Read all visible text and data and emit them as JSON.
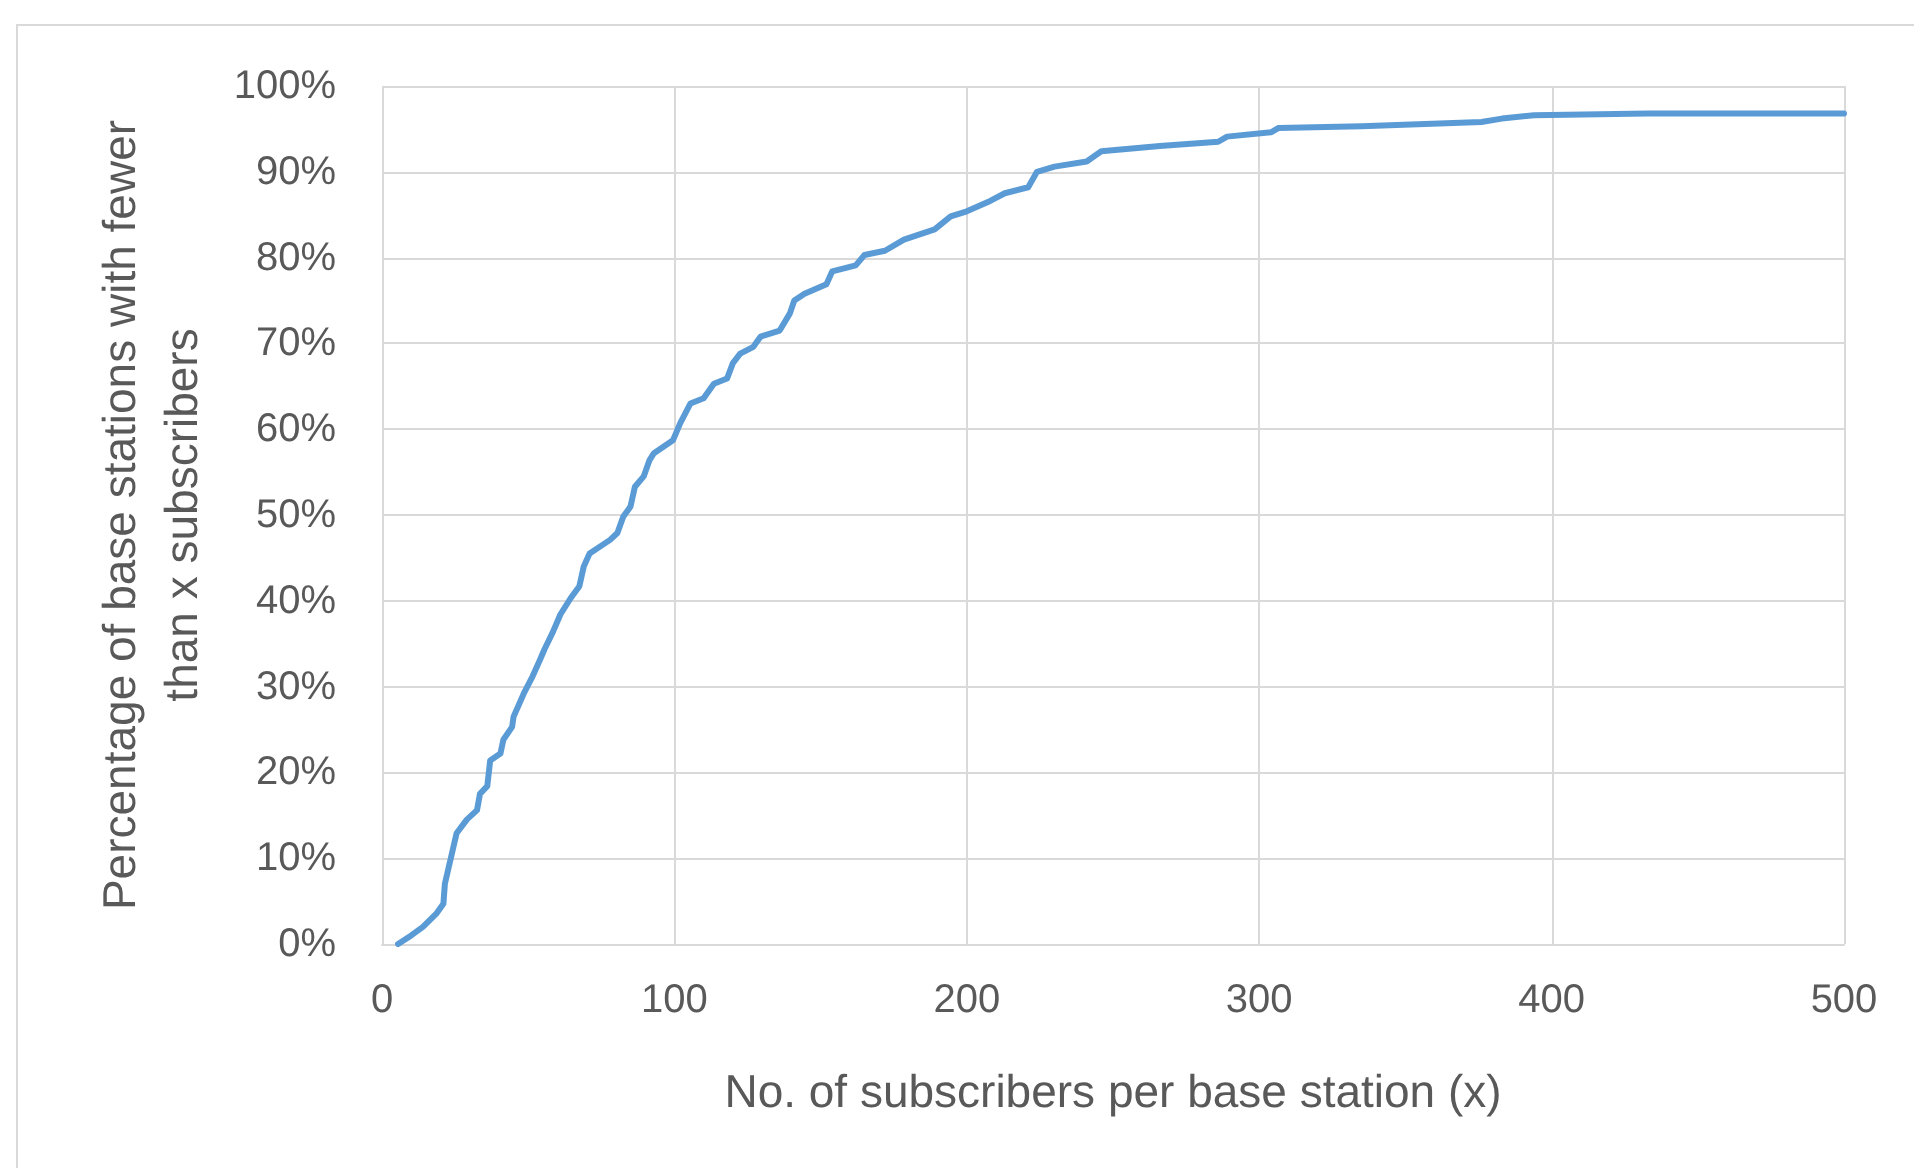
{
  "chart_data": {
    "type": "line",
    "xlabel": "No. of subscribers per base station (x)",
    "ylabel": "Percentage of base stations with fewer than x subscribers",
    "x": [
      5.5,
      10,
      14,
      18.5,
      21,
      21.5,
      25.5,
      29,
      32.5,
      33.5,
      36,
      37,
      40.5,
      41.5,
      44.5,
      45,
      48.5,
      51.5,
      54,
      55.5,
      58.5,
      61,
      64.5,
      67.5,
      69,
      71,
      78,
      80.5,
      82.5,
      85,
      86.5,
      89.5,
      91.5,
      93,
      99.5,
      102,
      105.5,
      110,
      113.5,
      118,
      120,
      122.5,
      127,
      129.5,
      136,
      139.5,
      141,
      144.5,
      152,
      154,
      162,
      165,
      172,
      178.5,
      189,
      194.5,
      200,
      208,
      213,
      221,
      224,
      230,
      241,
      246,
      266,
      286,
      289,
      304,
      306.5,
      335,
      376,
      383,
      394,
      433,
      500
    ],
    "series": [
      {
        "color": "#5b9bd5",
        "values": [
          0,
          1,
          2,
          3.5,
          4.7,
          7,
          12.9,
          14.5,
          15.6,
          17.5,
          18.4,
          21.4,
          22.2,
          23.8,
          25.3,
          26.5,
          29.2,
          31.2,
          33.1,
          34.3,
          36.4,
          38.4,
          40.3,
          41.7,
          44,
          45.5,
          47.1,
          47.9,
          49.8,
          51,
          53.3,
          54.5,
          56.4,
          57.2,
          58.7,
          60.7,
          63,
          63.6,
          65.3,
          65.9,
          67.7,
          68.8,
          69.6,
          70.8,
          71.5,
          73.5,
          75,
          75.8,
          76.9,
          78.4,
          79.1,
          80.3,
          80.8,
          82.1,
          83.3,
          84.8,
          85.4,
          86.6,
          87.5,
          88.2,
          90,
          90.6,
          91.2,
          92.4,
          93,
          93.5,
          94.1,
          94.6,
          95.1,
          95.3,
          95.8,
          96.2,
          96.6,
          96.8,
          96.8
        ]
      }
    ],
    "xlim": [
      0,
      500
    ],
    "xticks": [
      0,
      100,
      200,
      300,
      400,
      500
    ],
    "ylim": [
      0,
      100
    ],
    "yticks": [
      {
        "value": 0,
        "label": "0%"
      },
      {
        "value": 10,
        "label": "10%"
      },
      {
        "value": 20,
        "label": "20%"
      },
      {
        "value": 30,
        "label": "30%"
      },
      {
        "value": 40,
        "label": "40%"
      },
      {
        "value": 50,
        "label": "50%"
      },
      {
        "value": 60,
        "label": "60%"
      },
      {
        "value": 70,
        "label": "70%"
      },
      {
        "value": 80,
        "label": "80%"
      },
      {
        "value": 90,
        "label": "90%"
      },
      {
        "value": 100,
        "label": "100%"
      }
    ],
    "grid": true
  }
}
